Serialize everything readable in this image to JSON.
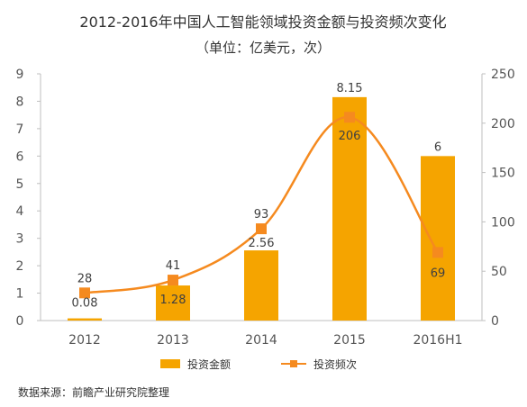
{
  "chart_data": {
    "type": "bar+line",
    "title": "2012-2016年中国人工智能领域投资金额与投资频次变化",
    "subtitle": "（单位：亿美元，次）",
    "categories": [
      "2012",
      "2013",
      "2014",
      "2015",
      "2016H1"
    ],
    "series": [
      {
        "name": "投资金额",
        "type": "bar",
        "axis": "left",
        "values": [
          0.08,
          1.28,
          2.56,
          8.15,
          6
        ],
        "labels": [
          "0.08",
          "1.28",
          "2.56",
          "8.15",
          "6"
        ],
        "color": "#F5A400"
      },
      {
        "name": "投资频次",
        "type": "line",
        "axis": "right",
        "values": [
          28,
          41,
          93,
          206,
          69
        ],
        "labels": [
          "28",
          "41",
          "93",
          "206",
          "69"
        ],
        "color": "#F58A1F"
      }
    ],
    "y_left": {
      "min": 0,
      "max": 9,
      "ticks": [
        "0",
        "1",
        "2",
        "3",
        "4",
        "5",
        "6",
        "7",
        "8",
        "9"
      ]
    },
    "y_right": {
      "min": 0,
      "max": 250,
      "ticks": [
        "0",
        "50",
        "100",
        "150",
        "200",
        "250"
      ]
    },
    "grid": false,
    "legend_position": "bottom",
    "source": "数据来源：前瞻产业研究院整理"
  }
}
